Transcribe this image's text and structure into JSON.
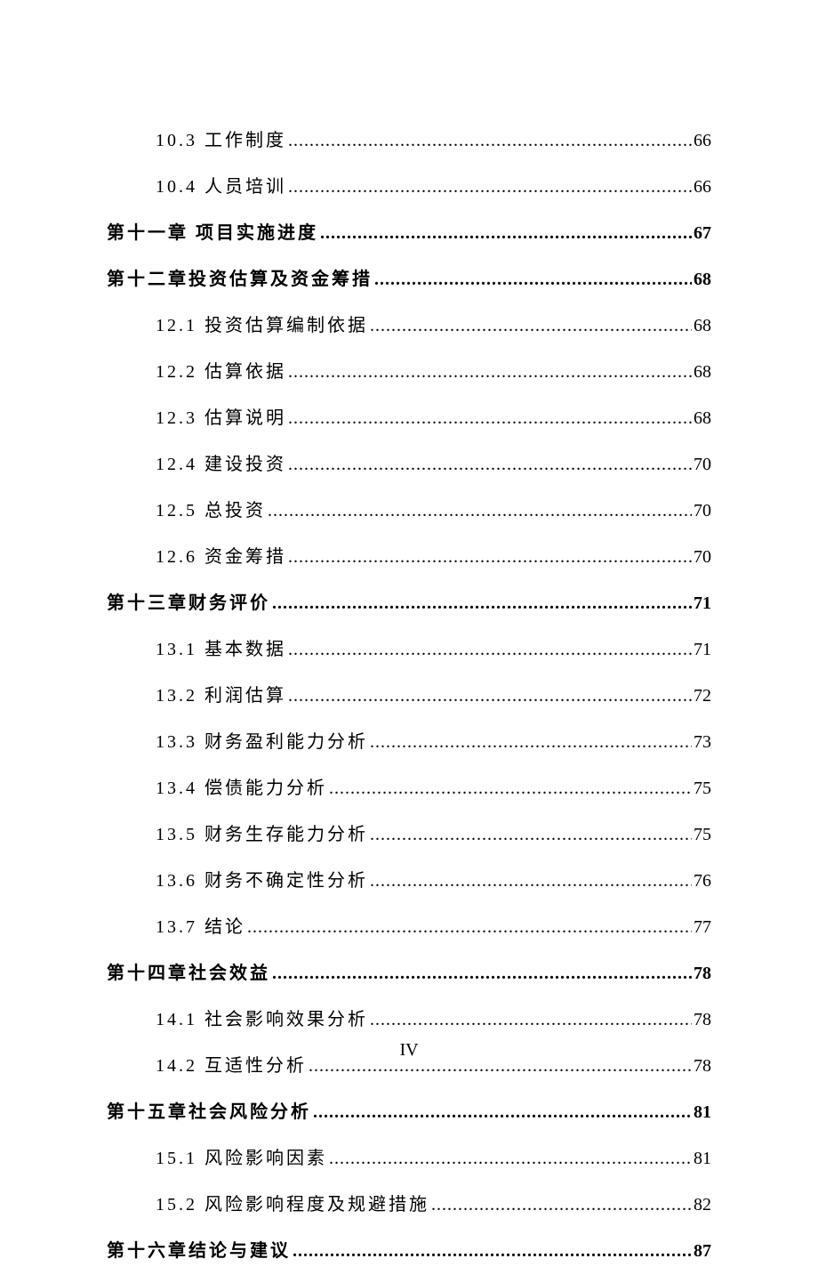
{
  "toc": [
    {
      "type": "section",
      "label": "10.3 工作制度",
      "page": "66"
    },
    {
      "type": "section",
      "label": "10.4 人员培训",
      "page": "66"
    },
    {
      "type": "chapter",
      "label": "第十一章  项目实施进度",
      "page": "67"
    },
    {
      "type": "chapter",
      "label": "第十二章投资估算及资金筹措",
      "page": "68"
    },
    {
      "type": "section",
      "label": "12.1 投资估算编制依据",
      "page": "68"
    },
    {
      "type": "section",
      "label": "12.2 估算依据",
      "page": "68"
    },
    {
      "type": "section",
      "label": "12.3 估算说明",
      "page": "68"
    },
    {
      "type": "section",
      "label": "12.4 建设投资",
      "page": "70"
    },
    {
      "type": "section",
      "label": "12.5 总投资",
      "page": "70"
    },
    {
      "type": "section",
      "label": "12.6 资金筹措",
      "page": "70"
    },
    {
      "type": "chapter",
      "label": "第十三章财务评价",
      "page": "71"
    },
    {
      "type": "section",
      "label": "13.1 基本数据",
      "page": "71"
    },
    {
      "type": "section",
      "label": "13.2 利润估算",
      "page": "72"
    },
    {
      "type": "section",
      "label": "13.3 财务盈利能力分析",
      "page": "73"
    },
    {
      "type": "section",
      "label": "13.4 偿债能力分析",
      "page": "75"
    },
    {
      "type": "section",
      "label": "13.5 财务生存能力分析",
      "page": "75"
    },
    {
      "type": "section",
      "label": "13.6 财务不确定性分析",
      "page": "76"
    },
    {
      "type": "section",
      "label": "13.7 结论",
      "page": "77"
    },
    {
      "type": "chapter",
      "label": "第十四章社会效益",
      "page": "78"
    },
    {
      "type": "section",
      "label": "14.1 社会影响效果分析",
      "page": "78"
    },
    {
      "type": "section",
      "label": "14.2 互适性分析",
      "page": "78"
    },
    {
      "type": "chapter",
      "label": "第十五章社会风险分析",
      "page": "81"
    },
    {
      "type": "section",
      "label": "15.1 风险影响因素",
      "page": "81"
    },
    {
      "type": "section",
      "label": "15.2 风险影响程度及规避措施",
      "page": "82"
    },
    {
      "type": "chapter",
      "label": "第十六章结论与建议",
      "page": "87"
    }
  ],
  "pageNumber": "IV",
  "styling": {
    "pageWidth": 920,
    "pageHeight": 1302,
    "background": "#ffffff",
    "textColor": "#000000",
    "fontSize": 20,
    "fontFamily": "SimSun",
    "chapterFontWeight": "bold",
    "sectionFontWeight": "normal",
    "sectionIndent": 55,
    "letterSpacing": 3,
    "lineSpacing": 16,
    "contentPaddingTop": 140,
    "contentPaddingLeft": 120,
    "contentPaddingRight": 120,
    "dotLeader": "."
  }
}
